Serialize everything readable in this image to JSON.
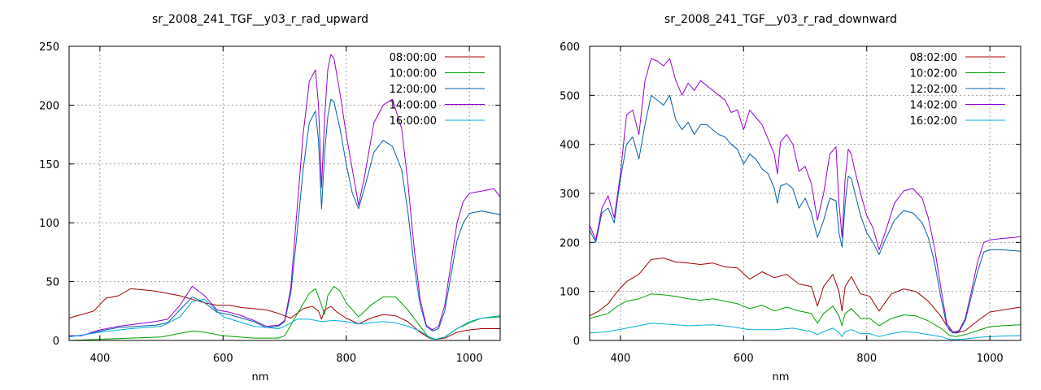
{
  "chart_data": [
    {
      "type": "line",
      "title": "sr_2008_241_TGF__y03_r_rad_upward",
      "xlabel": "nm",
      "ylabel": "",
      "xlim": [
        350,
        1050
      ],
      "ylim": [
        0,
        250
      ],
      "xticks": [
        400,
        600,
        800,
        1000
      ],
      "yticks": [
        0,
        50,
        100,
        150,
        200,
        250
      ],
      "grid": true,
      "legend_position": "top-right",
      "series": [
        {
          "name": "08:00:00",
          "color": "#a00000",
          "x": [
            350,
            370,
            390,
            410,
            430,
            450,
            470,
            490,
            510,
            530,
            550,
            570,
            590,
            610,
            630,
            650,
            670,
            690,
            710,
            730,
            745,
            755,
            760,
            765,
            775,
            785,
            800,
            820,
            840,
            860,
            880,
            900,
            920,
            935,
            945,
            960,
            980,
            1000,
            1020,
            1050
          ],
          "y": [
            19,
            22,
            25,
            36,
            38,
            44,
            43,
            42,
            40,
            38,
            35,
            32,
            30,
            30,
            28,
            27,
            26,
            23,
            19,
            27,
            29,
            25,
            18,
            26,
            29,
            24,
            19,
            14,
            19,
            22,
            21,
            16,
            7,
            2,
            1,
            2,
            7,
            9,
            10,
            10
          ]
        },
        {
          "name": "10:00:00",
          "color": "#00a000",
          "x": [
            350,
            400,
            450,
            500,
            530,
            550,
            570,
            600,
            650,
            690,
            700,
            720,
            740,
            750,
            760,
            765,
            770,
            780,
            790,
            800,
            820,
            840,
            860,
            880,
            900,
            920,
            935,
            945,
            960,
            980,
            1000,
            1020,
            1050
          ],
          "y": [
            0,
            1,
            2,
            3,
            6,
            8,
            7,
            4,
            2,
            2,
            4,
            22,
            40,
            44,
            30,
            22,
            38,
            46,
            42,
            32,
            20,
            30,
            37,
            37,
            26,
            12,
            2,
            1,
            3,
            10,
            15,
            19,
            20
          ]
        },
        {
          "name": "12:00:00",
          "color": "#0060ad",
          "x": [
            350,
            370,
            400,
            430,
            460,
            490,
            510,
            530,
            550,
            570,
            590,
            610,
            630,
            650,
            670,
            690,
            700,
            710,
            720,
            730,
            740,
            750,
            755,
            760,
            765,
            770,
            775,
            780,
            790,
            800,
            810,
            820,
            830,
            845,
            860,
            875,
            890,
            900,
            910,
            920,
            930,
            940,
            950,
            960,
            970,
            980,
            990,
            1000,
            1020,
            1050
          ],
          "y": [
            4,
            4,
            8,
            11,
            12,
            13,
            15,
            26,
            37,
            32,
            24,
            22,
            19,
            16,
            11,
            12,
            16,
            40,
            90,
            145,
            185,
            195,
            170,
            112,
            160,
            190,
            205,
            203,
            180,
            150,
            125,
            112,
            130,
            160,
            170,
            165,
            145,
            110,
            65,
            30,
            12,
            8,
            10,
            25,
            55,
            85,
            100,
            108,
            110,
            107
          ]
        },
        {
          "name": "14:00:00",
          "color": "#9400d3",
          "x": [
            350,
            370,
            400,
            430,
            460,
            490,
            510,
            530,
            550,
            570,
            590,
            610,
            630,
            650,
            670,
            690,
            700,
            710,
            720,
            730,
            740,
            750,
            755,
            760,
            765,
            770,
            775,
            780,
            790,
            800,
            810,
            820,
            830,
            845,
            860,
            875,
            890,
            900,
            910,
            920,
            930,
            940,
            950,
            960,
            970,
            980,
            990,
            1000,
            1020,
            1040,
            1050
          ],
          "y": [
            4,
            4,
            9,
            12,
            14,
            16,
            18,
            30,
            46,
            38,
            26,
            24,
            21,
            17,
            12,
            13,
            17,
            45,
            110,
            175,
            220,
            230,
            200,
            130,
            190,
            230,
            243,
            240,
            210,
            175,
            145,
            115,
            140,
            185,
            200,
            205,
            180,
            135,
            80,
            35,
            13,
            9,
            12,
            30,
            65,
            100,
            118,
            125,
            127,
            129,
            122
          ]
        },
        {
          "name": "16:00:00",
          "color": "#00aedc",
          "x": [
            350,
            400,
            450,
            500,
            530,
            550,
            570,
            600,
            650,
            690,
            700,
            720,
            740,
            760,
            780,
            800,
            820,
            840,
            860,
            880,
            900,
            920,
            935,
            945,
            960,
            980,
            1000,
            1020,
            1050
          ],
          "y": [
            3,
            7,
            10,
            12,
            20,
            33,
            35,
            20,
            12,
            10,
            12,
            18,
            18,
            16,
            17,
            16,
            14,
            15,
            16,
            15,
            12,
            8,
            3,
            1,
            3,
            10,
            16,
            19,
            21
          ]
        }
      ]
    },
    {
      "type": "line",
      "title": "sr_2008_241_TGF__y03_r_rad_downward",
      "xlabel": "nm",
      "ylabel": "",
      "xlim": [
        350,
        1050
      ],
      "ylim": [
        0,
        600
      ],
      "xticks": [
        400,
        600,
        800,
        1000
      ],
      "yticks": [
        0,
        100,
        200,
        300,
        400,
        500,
        600
      ],
      "grid": true,
      "legend_position": "top-right",
      "series": [
        {
          "name": "08:02:00",
          "color": "#a00000",
          "x": [
            350,
            365,
            380,
            395,
            410,
            430,
            450,
            470,
            490,
            510,
            530,
            550,
            570,
            590,
            610,
            630,
            650,
            670,
            690,
            710,
            720,
            730,
            745,
            755,
            760,
            765,
            775,
            790,
            805,
            820,
            840,
            860,
            880,
            900,
            920,
            935,
            945,
            960,
            980,
            1000,
            1020,
            1050
          ],
          "y": [
            50,
            60,
            75,
            100,
            120,
            135,
            165,
            168,
            160,
            158,
            155,
            158,
            150,
            148,
            125,
            140,
            128,
            135,
            115,
            110,
            70,
            110,
            135,
            100,
            60,
            110,
            130,
            95,
            90,
            60,
            95,
            105,
            100,
            80,
            50,
            20,
            15,
            20,
            40,
            58,
            62,
            68
          ]
        },
        {
          "name": "10:02:00",
          "color": "#00a000",
          "x": [
            350,
            365,
            380,
            395,
            410,
            430,
            450,
            470,
            490,
            510,
            530,
            550,
            570,
            590,
            610,
            630,
            650,
            670,
            690,
            710,
            720,
            730,
            745,
            755,
            760,
            765,
            775,
            790,
            805,
            820,
            840,
            860,
            880,
            900,
            920,
            935,
            945,
            960,
            980,
            1000,
            1020,
            1050
          ],
          "y": [
            45,
            50,
            55,
            70,
            80,
            85,
            95,
            93,
            90,
            85,
            82,
            85,
            80,
            75,
            65,
            72,
            60,
            68,
            60,
            55,
            35,
            55,
            70,
            50,
            30,
            55,
            65,
            45,
            45,
            30,
            45,
            52,
            50,
            40,
            25,
            10,
            8,
            12,
            20,
            28,
            30,
            32
          ]
        },
        {
          "name": "12:02:00",
          "color": "#0060ad",
          "x": [
            350,
            360,
            370,
            380,
            390,
            400,
            410,
            420,
            430,
            440,
            450,
            460,
            470,
            480,
            490,
            500,
            510,
            520,
            530,
            540,
            550,
            560,
            570,
            580,
            590,
            600,
            610,
            620,
            630,
            640,
            650,
            655,
            660,
            670,
            680,
            690,
            700,
            710,
            720,
            730,
            740,
            750,
            755,
            760,
            765,
            770,
            775,
            780,
            790,
            800,
            810,
            820,
            830,
            845,
            860,
            875,
            890,
            900,
            910,
            920,
            930,
            940,
            950,
            960,
            970,
            980,
            990,
            1000,
            1020,
            1040,
            1050
          ],
          "y": [
            225,
            200,
            260,
            270,
            240,
            330,
            400,
            415,
            370,
            440,
            500,
            490,
            480,
            500,
            450,
            430,
            445,
            420,
            440,
            440,
            430,
            420,
            415,
            400,
            390,
            360,
            380,
            370,
            350,
            340,
            310,
            280,
            315,
            320,
            310,
            270,
            290,
            260,
            210,
            245,
            290,
            285,
            220,
            190,
            280,
            335,
            330,
            305,
            255,
            220,
            200,
            175,
            205,
            245,
            265,
            260,
            240,
            210,
            160,
            90,
            30,
            15,
            18,
            40,
            90,
            140,
            180,
            185,
            185,
            183,
            182
          ]
        },
        {
          "name": "14:02:00",
          "color": "#9400d3",
          "x": [
            350,
            360,
            370,
            380,
            390,
            400,
            410,
            420,
            430,
            440,
            450,
            460,
            470,
            480,
            490,
            500,
            510,
            520,
            530,
            540,
            550,
            560,
            570,
            580,
            590,
            600,
            610,
            620,
            630,
            640,
            650,
            655,
            660,
            670,
            680,
            690,
            700,
            710,
            720,
            730,
            740,
            750,
            755,
            760,
            765,
            770,
            775,
            780,
            790,
            800,
            810,
            820,
            830,
            845,
            860,
            875,
            890,
            900,
            910,
            920,
            930,
            940,
            950,
            960,
            970,
            980,
            990,
            1000,
            1020,
            1040,
            1050
          ],
          "y": [
            235,
            205,
            270,
            295,
            250,
            340,
            460,
            470,
            420,
            530,
            575,
            570,
            560,
            575,
            530,
            500,
            525,
            510,
            530,
            520,
            510,
            500,
            490,
            465,
            470,
            430,
            470,
            455,
            440,
            410,
            380,
            340,
            405,
            420,
            400,
            345,
            355,
            320,
            245,
            300,
            380,
            395,
            280,
            210,
            330,
            390,
            380,
            350,
            300,
            255,
            230,
            185,
            220,
            280,
            305,
            310,
            290,
            250,
            190,
            110,
            35,
            17,
            20,
            45,
            100,
            160,
            200,
            205,
            208,
            210,
            212
          ]
        },
        {
          "name": "16:02:00",
          "color": "#00aedc",
          "x": [
            350,
            380,
            410,
            450,
            480,
            510,
            550,
            580,
            610,
            650,
            680,
            710,
            720,
            730,
            745,
            755,
            760,
            765,
            775,
            790,
            805,
            820,
            840,
            860,
            880,
            900,
            920,
            935,
            945,
            960,
            980,
            1000,
            1020,
            1050
          ],
          "y": [
            15,
            18,
            25,
            35,
            33,
            30,
            32,
            28,
            22,
            22,
            25,
            18,
            12,
            18,
            25,
            16,
            8,
            18,
            22,
            14,
            14,
            8,
            14,
            18,
            16,
            12,
            8,
            2,
            2,
            3,
            6,
            8,
            9,
            10
          ]
        }
      ]
    }
  ]
}
